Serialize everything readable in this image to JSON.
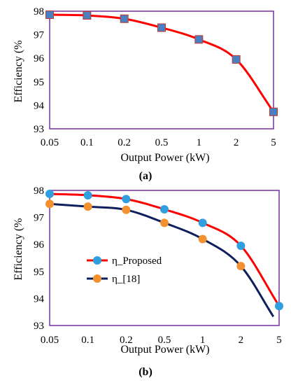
{
  "chart_data": [
    {
      "type": "line",
      "caption": "(a)",
      "xlabel": "Output Power (kW)",
      "ylabel": "Efficiency (%",
      "x_tick_labels": [
        "0.05",
        "0.1",
        "0.2",
        "0.5",
        "1",
        "2",
        "5"
      ],
      "y_tick_labels": [
        "93",
        "94",
        "95",
        "96",
        "97",
        "98"
      ],
      "ylim": [
        93,
        98
      ],
      "grid": false,
      "legend": null,
      "series": [
        {
          "x": [
            0.05,
            0.1,
            0.2,
            0.5,
            1,
            2,
            5
          ],
          "values": [
            97.85,
            97.82,
            97.68,
            97.3,
            96.8,
            95.95,
            93.72
          ],
          "line_color": "#ff0000",
          "marker_color": "#4a7fc1",
          "marker": "square"
        }
      ]
    },
    {
      "type": "line",
      "caption": "(b)",
      "xlabel": "Output Power (kW)",
      "ylabel": "Efficiency (%",
      "x_tick_labels": [
        "0.05",
        "0.1",
        "0.2",
        "0.5",
        "1",
        "2",
        "5"
      ],
      "y_tick_labels": [
        "93",
        "94",
        "95",
        "96",
        "97",
        "98"
      ],
      "ylim": [
        93,
        98
      ],
      "grid": false,
      "legend": "center-left",
      "series": [
        {
          "name": "η_Proposed",
          "x": [
            0.05,
            0.1,
            0.2,
            0.5,
            1,
            2,
            5
          ],
          "values": [
            97.87,
            97.82,
            97.68,
            97.3,
            96.8,
            95.95,
            93.72
          ],
          "line_color": "#ff0000",
          "marker_color": "#2f9fe0",
          "marker": "circle"
        },
        {
          "name": "η_[18]",
          "x": [
            0.05,
            0.1,
            0.2,
            0.5,
            1,
            2
          ],
          "values": [
            97.5,
            97.4,
            97.28,
            96.8,
            96.2,
            95.2
          ],
          "line_color": "#0d1f5c",
          "marker_color": "#f39030",
          "marker": "circle",
          "extends_below_axis": true
        }
      ]
    }
  ],
  "frame_color": "#7030a0"
}
